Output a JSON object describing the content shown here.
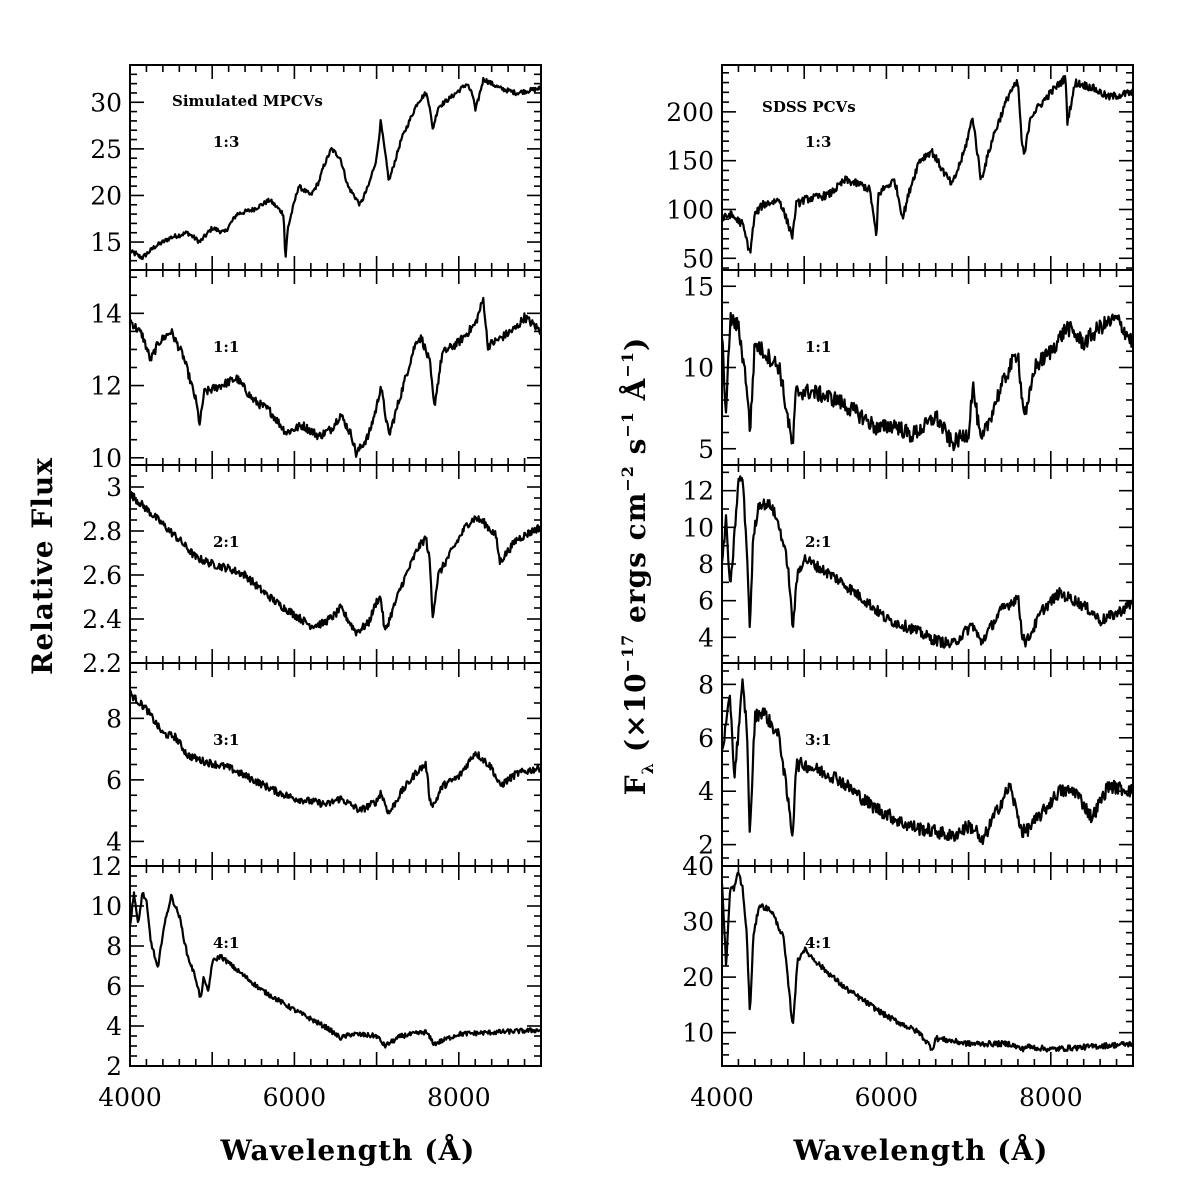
{
  "chart_data": [
    {
      "type": "line",
      "column": "left",
      "corner_title": "Simulated MPCVs",
      "ylabel": "Relative Flux",
      "xlabel": "Wavelength (Å)",
      "xlim": [
        4000,
        9000
      ],
      "x_ticks": [
        4000,
        6000,
        8000
      ],
      "panels": [
        {
          "label": "1:3",
          "ylim": [
            12,
            34
          ],
          "yticks": [
            15,
            20,
            25,
            30
          ],
          "minor_step": 1,
          "noise": 0.25,
          "x": [
            4000,
            4150,
            4300,
            4500,
            4700,
            4850,
            5000,
            5150,
            5300,
            5500,
            5700,
            5870,
            5890,
            5920,
            6050,
            6200,
            6300,
            6350,
            6450,
            6560,
            6650,
            6800,
            6900,
            7000,
            7050,
            7150,
            7300,
            7500,
            7600,
            7650,
            7680,
            7750,
            7900,
            8100,
            8180,
            8200,
            8300,
            8500,
            8700,
            9000
          ],
          "y": [
            14,
            13.3,
            14.5,
            15.5,
            16,
            15,
            16.5,
            16,
            18,
            18.5,
            19.5,
            18,
            13,
            16.5,
            21,
            20,
            21.5,
            23,
            25,
            24,
            21,
            19,
            21,
            24,
            28,
            21.5,
            26,
            30,
            31,
            29.5,
            27,
            29.5,
            30.5,
            32,
            30.5,
            29,
            32.5,
            31.5,
            31,
            31.5
          ]
        },
        {
          "label": "1:1",
          "ylim": [
            9.8,
            15.2
          ],
          "yticks": [
            10,
            12,
            14
          ],
          "minor_step": 0.5,
          "noise": 0.12,
          "x": [
            4000,
            4150,
            4250,
            4350,
            4500,
            4650,
            4800,
            4850,
            4900,
            5100,
            5300,
            5500,
            5700,
            5900,
            6100,
            6300,
            6450,
            6560,
            6700,
            6750,
            6900,
            7000,
            7050,
            7150,
            7300,
            7450,
            7500,
            7550,
            7650,
            7700,
            7800,
            8000,
            8200,
            8300,
            8350,
            8500,
            8700,
            8800,
            9000
          ],
          "y": [
            13.8,
            13.4,
            12.7,
            13.2,
            13.5,
            12.8,
            11.6,
            10.9,
            11.8,
            12,
            12.2,
            11.6,
            11.3,
            10.7,
            10.9,
            10.6,
            10.8,
            11.2,
            10.6,
            10.1,
            10.6,
            11.4,
            12,
            10.6,
            11.8,
            13,
            13.3,
            13.3,
            12.6,
            11.4,
            12.9,
            13.2,
            13.7,
            14.4,
            13.1,
            13.3,
            13.6,
            13.9,
            13.5
          ]
        },
        {
          "label": "2:1",
          "ylim": [
            2.2,
            3.1
          ],
          "yticks": [
            2.2,
            2.4,
            2.6,
            2.8,
            3
          ],
          "minor_step": 0.05,
          "noise": 0.018,
          "x": [
            4000,
            4200,
            4400,
            4600,
            4800,
            5000,
            5200,
            5400,
            5600,
            5800,
            6000,
            6200,
            6350,
            6500,
            6560,
            6750,
            6900,
            7000,
            7050,
            7100,
            7300,
            7500,
            7600,
            7650,
            7680,
            7750,
            7900,
            8100,
            8200,
            8300,
            8450,
            8500,
            8700,
            9000
          ],
          "y": [
            2.97,
            2.9,
            2.83,
            2.76,
            2.68,
            2.65,
            2.63,
            2.6,
            2.53,
            2.47,
            2.42,
            2.37,
            2.38,
            2.42,
            2.45,
            2.34,
            2.38,
            2.48,
            2.5,
            2.34,
            2.55,
            2.72,
            2.77,
            2.65,
            2.41,
            2.6,
            2.7,
            2.83,
            2.86,
            2.84,
            2.78,
            2.66,
            2.76,
            2.82
          ]
        },
        {
          "label": "3:1",
          "ylim": [
            3.2,
            9.8
          ],
          "yticks": [
            4,
            6,
            8
          ],
          "minor_step": 0.5,
          "noise": 0.12,
          "x": [
            4000,
            4200,
            4400,
            4550,
            4700,
            4900,
            5200,
            5500,
            5800,
            6000,
            6200,
            6400,
            6560,
            6800,
            7000,
            7050,
            7150,
            7300,
            7500,
            7600,
            7650,
            7700,
            7800,
            8000,
            8200,
            8400,
            8500,
            8700,
            9000
          ],
          "y": [
            8.8,
            8.3,
            7.5,
            7.4,
            6.8,
            6.6,
            6.4,
            6,
            5.6,
            5.4,
            5.3,
            5.2,
            5.4,
            5,
            5.3,
            5.6,
            4.9,
            5.6,
            6.3,
            6.5,
            5.3,
            5.2,
            5.8,
            6.1,
            6.9,
            6.4,
            5.8,
            6.2,
            6.4
          ]
        },
        {
          "label": "4:1",
          "ylim": [
            2,
            12
          ],
          "yticks": [
            2,
            4,
            6,
            8,
            10,
            12
          ],
          "minor_step": 0.5,
          "noise": 0.12,
          "x": [
            4000,
            4050,
            4100,
            4150,
            4200,
            4250,
            4300,
            4340,
            4400,
            4500,
            4600,
            4700,
            4800,
            4860,
            4900,
            4950,
            5000,
            5100,
            5300,
            5600,
            6000,
            6400,
            6560,
            6700,
            7000,
            7100,
            7300,
            7600,
            7700,
            8000,
            8500,
            9000
          ],
          "y": [
            9,
            10.7,
            9,
            10.7,
            10.2,
            8.3,
            7.5,
            6.8,
            8.7,
            10.5,
            9.5,
            7.5,
            6.4,
            5.3,
            6.5,
            5.6,
            7.2,
            7.5,
            6.8,
            5.8,
            4.8,
            3.9,
            3.4,
            3.6,
            3.5,
            3,
            3.5,
            3.7,
            3.1,
            3.6,
            3.7,
            3.8
          ]
        }
      ]
    },
    {
      "type": "line",
      "column": "right",
      "corner_title": "SDSS PCVs",
      "ylabel": "F",
      "ylabel_sub": "λ",
      "ylabel_parts": [
        "(×10",
        "−17",
        " ergs cm",
        "−2",
        " s",
        "−1",
        " Å",
        "−1",
        ")"
      ],
      "xlabel": "Wavelength (Å)",
      "xlim": [
        4000,
        9000
      ],
      "x_ticks": [
        4000,
        6000,
        8000
      ],
      "panels": [
        {
          "label": "1:3",
          "ylim": [
            38,
            248
          ],
          "yticks": [
            50,
            100,
            150,
            200
          ],
          "minor_step": 10,
          "noise": 4,
          "x": [
            4000,
            4100,
            4250,
            4340,
            4400,
            4500,
            4700,
            4860,
            4900,
            5000,
            5300,
            5500,
            5700,
            5800,
            5880,
            5900,
            5950,
            6100,
            6200,
            6300,
            6400,
            6550,
            6700,
            6800,
            6950,
            7050,
            7150,
            7300,
            7500,
            7600,
            7650,
            7680,
            7750,
            8000,
            8180,
            8200,
            8300,
            8500,
            8700,
            9000
          ],
          "y": [
            90,
            95,
            85,
            55,
            95,
            105,
            110,
            72,
            105,
            110,
            115,
            130,
            125,
            120,
            70,
            115,
            120,
            130,
            92,
            125,
            150,
            160,
            138,
            125,
            160,
            195,
            130,
            175,
            220,
            230,
            165,
            155,
            195,
            220,
            235,
            190,
            230,
            225,
            215,
            220
          ]
        },
        {
          "label": "1:1",
          "ylim": [
            4,
            16
          ],
          "yticks": [
            5,
            10,
            15
          ],
          "minor_step": 1,
          "noise": 0.5,
          "x": [
            4000,
            4050,
            4100,
            4200,
            4300,
            4340,
            4400,
            4500,
            4700,
            4860,
            4900,
            5100,
            5400,
            5700,
            5900,
            6100,
            6300,
            6500,
            6600,
            6800,
            7000,
            7050,
            7150,
            7350,
            7500,
            7600,
            7650,
            7700,
            7800,
            8000,
            8200,
            8400,
            8600,
            8800,
            9000
          ],
          "y": [
            12,
            7,
            13,
            12.5,
            9,
            6,
            11.5,
            11,
            10,
            5,
            8.5,
            8.5,
            8,
            7,
            6.2,
            6.5,
            5.8,
            6.5,
            7,
            5.3,
            6,
            9,
            5.3,
            8.2,
            10,
            11,
            8,
            7,
            10,
            11,
            12.5,
            11.5,
            12.5,
            13,
            11.5
          ]
        },
        {
          "label": "2:1",
          "ylim": [
            2.6,
            13.4
          ],
          "yticks": [
            4,
            6,
            8,
            10,
            12
          ],
          "minor_step": 1,
          "noise": 0.3,
          "x": [
            4000,
            4050,
            4100,
            4200,
            4250,
            4300,
            4340,
            4380,
            4450,
            4600,
            4700,
            4800,
            4860,
            4920,
            5000,
            5400,
            5800,
            6000,
            6300,
            6560,
            6800,
            7050,
            7150,
            7400,
            7600,
            7650,
            7700,
            7900,
            8100,
            8300,
            8500,
            8600,
            8800,
            9000
          ],
          "y": [
            8,
            10.5,
            6.5,
            12.5,
            12.7,
            9,
            4.4,
            9.5,
            11.3,
            11.2,
            10,
            8,
            4.5,
            7.5,
            8.3,
            7.2,
            5.8,
            5,
            4.5,
            3.9,
            3.6,
            4.7,
            3.7,
            5.5,
            6.2,
            4.2,
            3.7,
            5.5,
            6.4,
            6,
            5.4,
            4.9,
            5.3,
            5.9
          ]
        },
        {
          "label": "3:1",
          "ylim": [
            1.2,
            8.8
          ],
          "yticks": [
            2,
            4,
            6,
            8
          ],
          "minor_step": 0.5,
          "noise": 0.25,
          "x": [
            4000,
            4100,
            4150,
            4250,
            4300,
            4340,
            4400,
            4500,
            4700,
            4860,
            4900,
            5000,
            5400,
            5800,
            6200,
            6400,
            6600,
            6800,
            7000,
            7100,
            7150,
            7300,
            7500,
            7650,
            7700,
            7900,
            8100,
            8300,
            8500,
            8700,
            9000
          ],
          "y": [
            5.5,
            7.5,
            4.5,
            8,
            6.5,
            2.3,
            6.8,
            7,
            6,
            2.3,
            5,
            5,
            4.5,
            3.5,
            2.8,
            2.6,
            2.5,
            2.3,
            2.7,
            2.5,
            2,
            3,
            4.2,
            2.5,
            2.5,
            3.2,
            4,
            4,
            3,
            4.2,
            4
          ]
        },
        {
          "label": "4:1",
          "ylim": [
            4,
            40
          ],
          "yticks": [
            10,
            20,
            30,
            40
          ],
          "minor_step": 2,
          "noise": 0.5,
          "x": [
            4000,
            4050,
            4100,
            4150,
            4200,
            4250,
            4300,
            4340,
            4380,
            4450,
            4600,
            4750,
            4860,
            4920,
            5000,
            5200,
            5500,
            6000,
            6400,
            6560,
            6600,
            7000,
            7500,
            7650,
            7700,
            8000,
            8500,
            9000
          ],
          "y": [
            37,
            22,
            36,
            36,
            39,
            36,
            28,
            13,
            27,
            33,
            32,
            27,
            11,
            23,
            25,
            22,
            18,
            13,
            10,
            7,
            9,
            8,
            8,
            7,
            7.5,
            7,
            7.5,
            8
          ]
        }
      ]
    }
  ]
}
